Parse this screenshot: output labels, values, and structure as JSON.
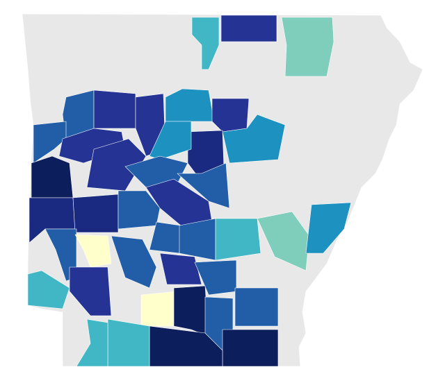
{
  "map": {
    "colors": [
      "#e8e8e8",
      "#0c1f5c",
      "#1a2a80",
      "#253494",
      "#225ea8",
      "#1d91c0",
      "#41b6c4",
      "#7fcdbb",
      "#ffffcc"
    ]
  }
}
